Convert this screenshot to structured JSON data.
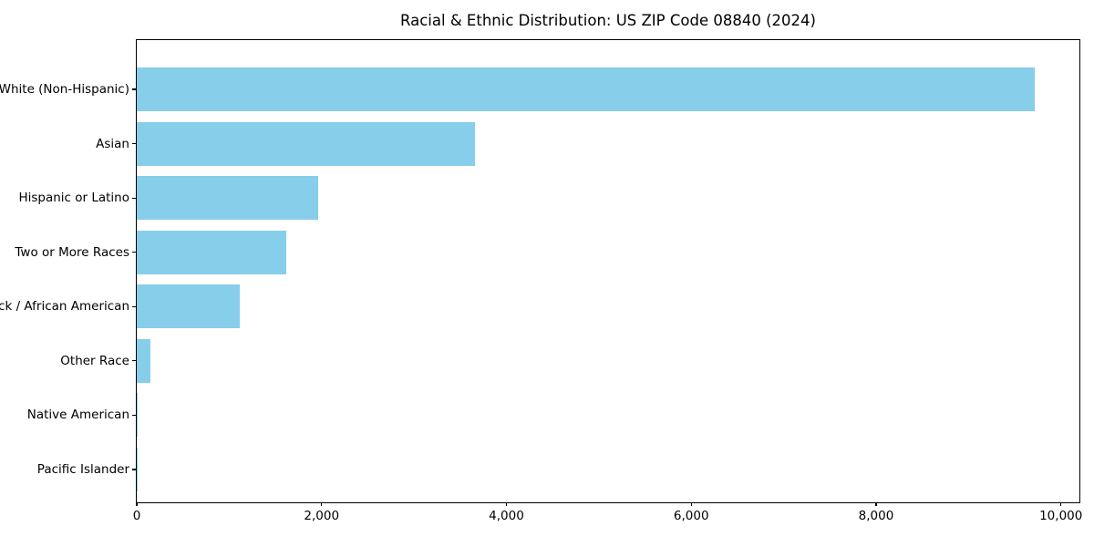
{
  "title": "Racial & Ethnic Distribution: US ZIP Code 08840 (2024)",
  "colors": {
    "bar": "#87CEEB",
    "axis": "#000000",
    "background": "#FFFFFF",
    "text": "#000000"
  },
  "chart_data": {
    "type": "bar",
    "orientation": "horizontal",
    "title": "Racial & Ethnic Distribution: US ZIP Code 08840 (2024)",
    "categories": [
      "White (Non-Hispanic)",
      "Asian",
      "Hispanic or Latino",
      "Two or More Races",
      "Black / African American",
      "Other Race",
      "Native American",
      "Pacific Islander"
    ],
    "values": [
      9720,
      3660,
      1960,
      1620,
      1110,
      145,
      12,
      3
    ],
    "xlabel": "",
    "ylabel": "",
    "xlim": [
      0,
      10200
    ],
    "xticks": [
      0,
      2000,
      4000,
      6000,
      8000,
      10000
    ],
    "xtick_labels": [
      "0",
      "2,000",
      "4,000",
      "6,000",
      "8,000",
      "10,000"
    ],
    "grid": false,
    "legend": null,
    "bar_color": "#87CEEB"
  }
}
